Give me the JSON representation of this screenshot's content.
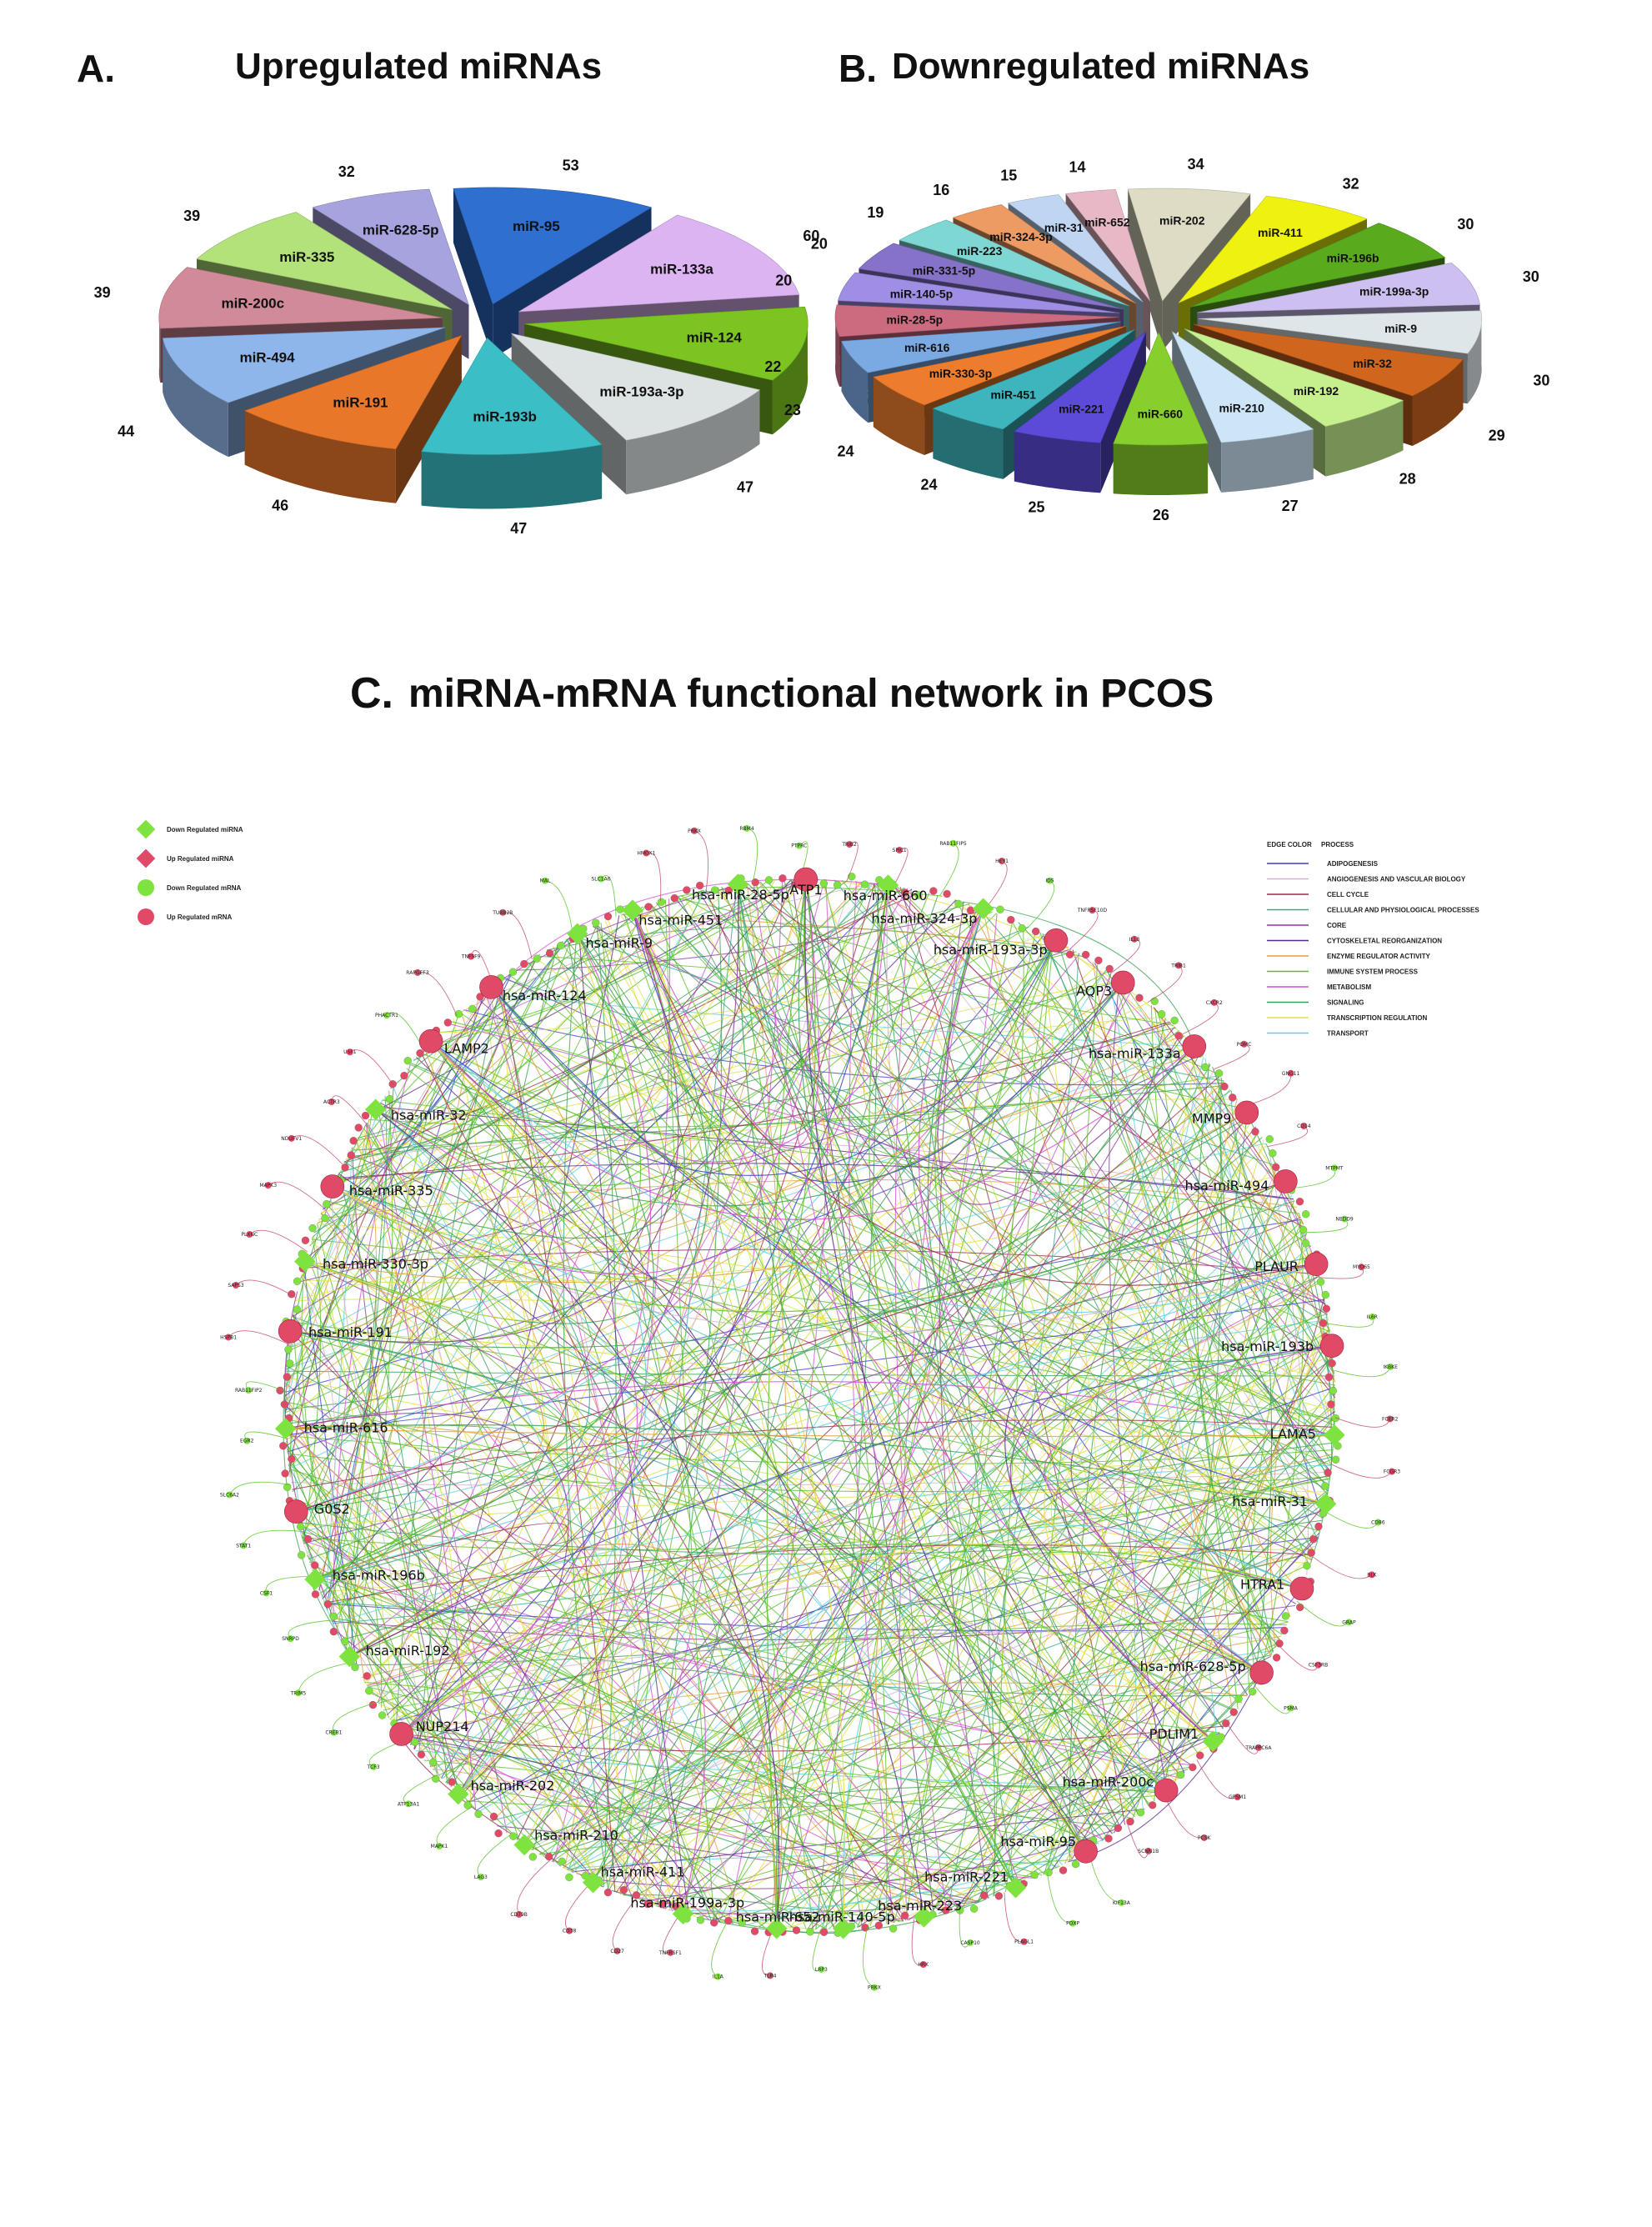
{
  "panel_a": {
    "letter": "A.",
    "title": "Upregulated miRNAs"
  },
  "panel_b": {
    "letter": "B.",
    "title": "Downregulated miRNAs"
  },
  "panel_c": {
    "letter": "C.",
    "title": "miRNA-mRNA functional network in PCOS"
  },
  "chart_data": [
    {
      "type": "pie",
      "title": "Upregulated miRNAs",
      "categories": [
        "miR-95",
        "miR-133a",
        "miR-124",
        "miR-193a-3p",
        "miR-193b",
        "miR-191",
        "miR-494",
        "miR-200c",
        "miR-335",
        "miR-628-5p"
      ],
      "values": [
        53,
        60,
        47,
        47,
        47,
        46,
        44,
        39,
        39,
        32
      ],
      "colors": [
        "#2e6fd0",
        "#dcb4f2",
        "#7cc421",
        "#dde2e3",
        "#3bbec6",
        "#e8772a",
        "#8fb6ea",
        "#d08a98",
        "#b3e27b",
        "#a7a3df"
      ]
    },
    {
      "type": "pie",
      "title": "Downregulated miRNAs",
      "categories": [
        "miR-202",
        "miR-411",
        "miR-196b",
        "miR-199a-3p",
        "miR-9",
        "miR-32",
        "miR-192",
        "miR-210",
        "miR-660",
        "miR-221",
        "miR-451",
        "miR-330-3p",
        "miR-616",
        "miR-28-5p",
        "miR-140-5p",
        "miR-331-5p",
        "miR-223",
        "miR-324-3p",
        "miR-31",
        "miR-652"
      ],
      "values": [
        34,
        32,
        30,
        30,
        30,
        29,
        28,
        27,
        26,
        25,
        24,
        24,
        23,
        22,
        20,
        20,
        19,
        16,
        15,
        14
      ],
      "colors": [
        "#dedcc4",
        "#eef20e",
        "#5aaa1e",
        "#cdbff0",
        "#dfe6ea",
        "#d0651e",
        "#c6f08e",
        "#cde6f7",
        "#86cf2c",
        "#5b4bd8",
        "#3eb5bd",
        "#ed7d2d",
        "#7ba9e2",
        "#cc6b80",
        "#9f8ee3",
        "#8672c8",
        "#7ed7d2",
        "#ee9a63",
        "#bfd5f2",
        "#e7b9c6"
      ]
    },
    {
      "type": "network",
      "title": "miRNA-mRNA functional network in PCOS",
      "node_legend": [
        "Down Regulated miRNA",
        "Up Regulated miRNA",
        "Down Regulated mRNA",
        "Up Regulated mRNA"
      ],
      "node_colors": {
        "down": "#7ee33e",
        "up": "#e04a66"
      },
      "edge_legend_header": [
        "EDGE COLOR",
        "PROCESS"
      ],
      "edge_legend": [
        {
          "name": "ADIPOGENESIS",
          "color": "#3d3dc8"
        },
        {
          "name": "ANGIOGENESIS AND VASCULAR BIOLOGY",
          "color": "#d8b0d0"
        },
        {
          "name": "CELL CYCLE",
          "color": "#9a2a4a"
        },
        {
          "name": "CELLULAR AND PHYSIOLOGICAL PROCESSES",
          "color": "#3aaa8a"
        },
        {
          "name": "CORE",
          "color": "#8a3a9a"
        },
        {
          "name": "CYTOSKELETAL REORGANIZATION",
          "color": "#5a2a8a"
        },
        {
          "name": "ENZYME REGULATOR ACTIVITY",
          "color": "#e0a040"
        },
        {
          "name": "IMMUNE SYSTEM PROCESS",
          "color": "#58c028"
        },
        {
          "name": "METABOLISM",
          "color": "#d050d0"
        },
        {
          "name": "SIGNALING",
          "color": "#3aa050"
        },
        {
          "name": "TRANSCRIPTION REGULATION",
          "color": "#e0e040"
        },
        {
          "name": "TRANSPORT",
          "color": "#60d0e0"
        }
      ],
      "hubs": [
        {
          "label": "hsa-miR-451",
          "type": "down"
        },
        {
          "label": "hsa-miR-28-5p",
          "type": "down"
        },
        {
          "label": "ATP1",
          "type": "up"
        },
        {
          "label": "hsa-miR-660",
          "type": "down"
        },
        {
          "label": "hsa-miR-324-3p",
          "type": "down"
        },
        {
          "label": "hsa-miR-193a-3p",
          "type": "up"
        },
        {
          "label": "AQP3",
          "type": "up"
        },
        {
          "label": "hsa-miR-133a",
          "type": "up"
        },
        {
          "label": "MMP9",
          "type": "up"
        },
        {
          "label": "hsa-miR-494",
          "type": "up"
        },
        {
          "label": "PLAUR",
          "type": "up"
        },
        {
          "label": "hsa-miR-193b",
          "type": "up"
        },
        {
          "label": "LAMA5",
          "type": "down"
        },
        {
          "label": "hsa-miR-31",
          "type": "down"
        },
        {
          "label": "HTRA1",
          "type": "up"
        },
        {
          "label": "hsa-miR-628-5p",
          "type": "up"
        },
        {
          "label": "PDLIM1",
          "type": "down"
        },
        {
          "label": "hsa-miR-200c",
          "type": "up"
        },
        {
          "label": "hsa-miR-95",
          "type": "up"
        },
        {
          "label": "hsa-miR-221",
          "type": "down"
        },
        {
          "label": "hsa-miR-223",
          "type": "down"
        },
        {
          "label": "hsa-miR-140-5p",
          "type": "down"
        },
        {
          "label": "hsa-miR-652",
          "type": "down"
        },
        {
          "label": "hsa-miR-199a-3p",
          "type": "down"
        },
        {
          "label": "hsa-miR-411",
          "type": "down"
        },
        {
          "label": "hsa-miR-210",
          "type": "down"
        },
        {
          "label": "hsa-miR-202",
          "type": "down"
        },
        {
          "label": "NUP214",
          "type": "up"
        },
        {
          "label": "hsa-miR-192",
          "type": "down"
        },
        {
          "label": "hsa-miR-196b",
          "type": "down"
        },
        {
          "label": "G0S2",
          "type": "up"
        },
        {
          "label": "hsa-miR-616",
          "type": "down"
        },
        {
          "label": "hsa-miR-191",
          "type": "up"
        },
        {
          "label": "hsa-miR-330-3p",
          "type": "down"
        },
        {
          "label": "hsa-miR-335",
          "type": "up"
        },
        {
          "label": "hsa-miR-32",
          "type": "down"
        },
        {
          "label": "LAMP2",
          "type": "up"
        },
        {
          "label": "hsa-miR-124",
          "type": "up"
        },
        {
          "label": "hsa-miR-9",
          "type": "down"
        }
      ],
      "genes": [
        "TRIB2",
        "SPIC1",
        "RAB11FIP5",
        "HEY1",
        "IDS",
        "TNFRSF10D",
        "IL18",
        "TRIB1",
        "CXCR2",
        "POMC",
        "GNG11",
        "CD14",
        "MTPMT",
        "NEDD9",
        "MYO65",
        "IL6R",
        "IKBKE",
        "FCER2",
        "FCGR3",
        "CD86",
        "BLK",
        "GRAP",
        "CSF3RB",
        "PSMA",
        "TRAPPC6A",
        "GPSM1",
        "PCSK",
        "SCNN1B",
        "KIF13A",
        "PDXP",
        "PLAGL1",
        "CASP10",
        "HRK",
        "PRKX",
        "LRP3",
        "TLR4",
        "IL1A",
        "TNFRSF1",
        "CD27",
        "CD38",
        "CD79B",
        "LAG3",
        "MAPK1",
        "ATP13A1",
        "TCF3",
        "CREB1",
        "TRIM5",
        "SNRPD",
        "CSF1",
        "STAT1",
        "SLC6A2",
        "EGR2",
        "RAB11FIP2",
        "HSPB1",
        "SAPS3",
        "PLXNC",
        "MAPK3",
        "NDUFV1",
        "ACTR3",
        "USF1",
        "PHACTR1",
        "RAPGEF3",
        "TNFSF9",
        "TUBB2B",
        "MAL",
        "SLC1A6",
        "HMOX1",
        "PRKX",
        "RBM4",
        "PTPRC"
      ]
    }
  ]
}
